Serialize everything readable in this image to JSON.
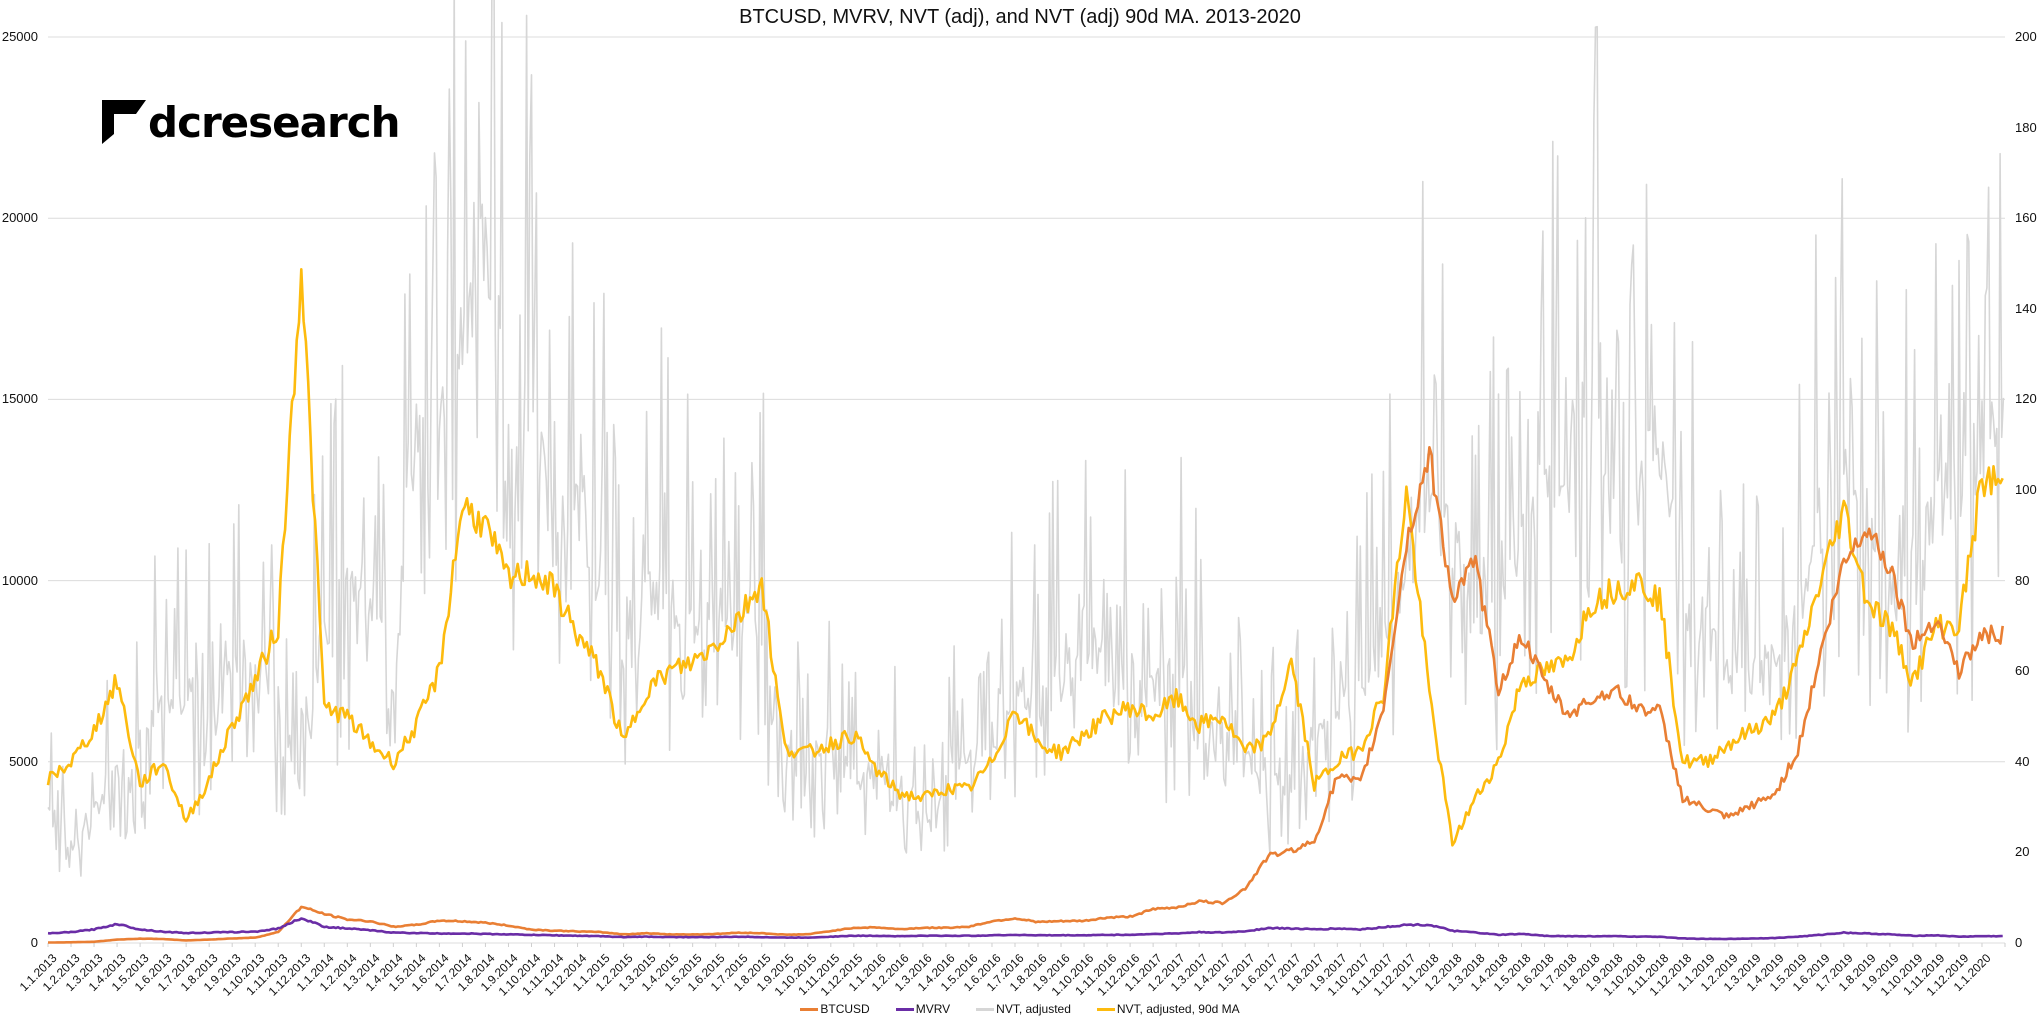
{
  "title": "BTCUSD, MVRV, NVT (adj), and NVT (adj) 90d MA. 2013-2020",
  "logo": {
    "text": "dcresearch",
    "icon": "dcresearch-logo-mark-icon"
  },
  "legend": [
    {
      "label": "BTCUSD",
      "color": "#E97F34"
    },
    {
      "label": "MVRV",
      "color": "#6A2DA6"
    },
    {
      "label": "NVT, adjusted",
      "color": "#D6D6D6"
    },
    {
      "label": "NVT, adjusted, 90d MA",
      "color": "#FDBB0E"
    }
  ],
  "chart_data": {
    "type": "line",
    "title": "BTCUSD, MVRV, NVT (adj), and NVT (adj) 90d MA. 2013-2020",
    "xlabel": "",
    "ylabel": "",
    "y_left": {
      "ticks": [
        "0",
        "5000",
        "10000",
        "15000",
        "20000",
        "25000"
      ],
      "range": [
        0,
        25000
      ]
    },
    "y_right": {
      "ticks": [
        "0",
        "20",
        "40",
        "60",
        "80",
        "100",
        "120",
        "140",
        "160",
        "180",
        "200"
      ],
      "range": [
        0,
        200
      ]
    },
    "grid": true,
    "legend_position": "bottom",
    "categories": [
      "1.1.2013",
      "1.2.2013",
      "1.3.2013",
      "1.4.2013",
      "1.5.2013",
      "1.6.2013",
      "1.7.2013",
      "1.8.2013",
      "1.9.2013",
      "1.10.2013",
      "1.11.2013",
      "1.12.2013",
      "1.1.2014",
      "1.2.2014",
      "1.3.2014",
      "1.4.2014",
      "1.5.2014",
      "1.6.2014",
      "1.7.2014",
      "1.8.2014",
      "1.9.2014",
      "1.10.2014",
      "1.11.2014",
      "1.12.2014",
      "1.1.2015",
      "1.2.2015",
      "1.3.2015",
      "1.4.2015",
      "1.5.2015",
      "1.6.2015",
      "1.7.2015",
      "1.8.2015",
      "1.9.2015",
      "1.10.2015",
      "1.11.2015",
      "1.12.2015",
      "1.1.2016",
      "1.2.2016",
      "1.3.2016",
      "1.4.2016",
      "1.5.2016",
      "1.6.2016",
      "1.7.2016",
      "1.8.2016",
      "1.9.2016",
      "1.10.2016",
      "1.11.2016",
      "1.12.2016",
      "1.1.2017",
      "1.2.2017",
      "1.3.2017",
      "1.4.2017",
      "1.5.2017",
      "1.6.2017",
      "1.7.2017",
      "1.8.2017",
      "1.9.2017",
      "1.10.2017",
      "1.11.2017",
      "1.12.2017",
      "1.1.2018",
      "1.2.2018",
      "1.3.2018",
      "1.4.2018",
      "1.5.2018",
      "1.6.2018",
      "1.7.2018",
      "1.8.2018",
      "1.9.2018",
      "1.10.2018",
      "1.11.2018",
      "1.12.2018",
      "1.1.2019",
      "1.2.2019",
      "1.3.2019",
      "1.4.2019",
      "1.5.2019",
      "1.6.2019",
      "1.7.2019",
      "1.8.2019",
      "1.9.2019",
      "1.10.2019",
      "1.11.2019",
      "1.12.2019",
      "1.1.2020"
    ],
    "series": [
      {
        "name": "BTCUSD",
        "axis": "left",
        "color": "#E97F34",
        "values": [
          13,
          20,
          34,
          93,
          120,
          110,
          70,
          95,
          125,
          150,
          300,
          1000,
          800,
          650,
          600,
          450,
          500,
          620,
          600,
          560,
          480,
          370,
          340,
          320,
          300,
          240,
          270,
          240,
          235,
          250,
          285,
          270,
          230,
          240,
          330,
          420,
          430,
          380,
          420,
          420,
          450,
          600,
          680,
          580,
          600,
          610,
          700,
          730,
          930,
          980,
          1150,
          1100,
          1500,
          2400,
          2550,
          2800,
          4600,
          4400,
          6500,
          11000,
          13500,
          9500,
          10500,
          7000,
          8500,
          7200,
          6300,
          6700,
          7000,
          6500,
          6400,
          4000,
          3700,
          3450,
          3800,
          4100,
          5300,
          8000,
          10500,
          11500,
          10400,
          8200,
          9000,
          7500,
          8500
        ]
      },
      {
        "name": "MVRV",
        "axis": "right",
        "color": "#6A2DA6",
        "values": [
          2.1,
          2.4,
          3.0,
          4.2,
          3.0,
          2.5,
          2.2,
          2.3,
          2.4,
          2.5,
          3.2,
          5.5,
          3.6,
          3.2,
          2.8,
          2.3,
          2.2,
          2.1,
          2.1,
          2.0,
          1.9,
          1.8,
          1.7,
          1.6,
          1.5,
          1.3,
          1.4,
          1.3,
          1.3,
          1.3,
          1.4,
          1.3,
          1.2,
          1.2,
          1.4,
          1.6,
          1.6,
          1.5,
          1.6,
          1.6,
          1.6,
          1.7,
          1.8,
          1.7,
          1.7,
          1.7,
          1.8,
          1.8,
          2.0,
          2.1,
          2.4,
          2.3,
          2.6,
          3.3,
          3.2,
          3.0,
          3.2,
          3.0,
          3.5,
          4.0,
          4.0,
          2.7,
          2.3,
          1.8,
          2.0,
          1.6,
          1.5,
          1.5,
          1.5,
          1.4,
          1.4,
          1.0,
          0.9,
          0.9,
          1.0,
          1.1,
          1.4,
          1.8,
          2.3,
          2.1,
          1.9,
          1.6,
          1.7,
          1.4,
          1.5
        ]
      },
      {
        "name": "NVT, adjusted",
        "axis": "right",
        "color": "#D6D6D6",
        "values": [
          30,
          22,
          28,
          38,
          45,
          50,
          55,
          48,
          60,
          62,
          50,
          35,
          70,
          80,
          75,
          60,
          110,
          120,
          130,
          160,
          105,
          115,
          90,
          95,
          80,
          60,
          75,
          80,
          70,
          72,
          70,
          75,
          40,
          40,
          45,
          35,
          40,
          30,
          28,
          35,
          40,
          45,
          55,
          50,
          60,
          70,
          55,
          60,
          55,
          60,
          50,
          45,
          40,
          35,
          35,
          45,
          50,
          55,
          70,
          80,
          100,
          90,
          70,
          80,
          90,
          100,
          110,
          120,
          90,
          95,
          115,
          80,
          70,
          60,
          60,
          60,
          75,
          90,
          110,
          90,
          75,
          85,
          95,
          100,
          110
        ]
      },
      {
        "name": "NVT, adjusted, 90d MA",
        "axis": "right",
        "color": "#FDBB0E",
        "values": [
          36,
          40,
          47,
          58,
          35,
          40,
          27,
          36,
          48,
          58,
          70,
          150,
          52,
          50,
          44,
          40,
          48,
          60,
          97,
          92,
          80,
          82,
          78,
          68,
          60,
          44,
          56,
          60,
          62,
          66,
          72,
          80,
          43,
          42,
          44,
          46,
          38,
          33,
          32,
          34,
          34,
          40,
          52,
          44,
          42,
          46,
          50,
          52,
          50,
          54,
          48,
          50,
          42,
          45,
          62,
          35,
          40,
          43,
          55,
          100,
          55,
          22,
          32,
          40,
          58,
          60,
          62,
          75,
          78,
          80,
          76,
          40,
          40,
          44,
          47,
          50,
          62,
          80,
          96,
          76,
          70,
          58,
          70,
          70,
          102
        ]
      }
    ]
  }
}
